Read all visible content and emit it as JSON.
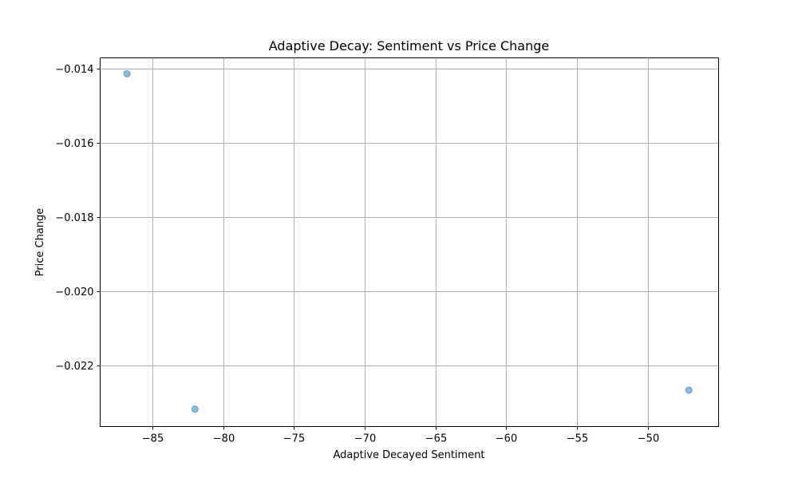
{
  "chart_data": {
    "type": "scatter",
    "title": "Adaptive Decay: Sentiment vs Price Change",
    "xlabel": "Adaptive Decayed Sentiment",
    "ylabel": "Price Change",
    "xlim": [
      -88.7,
      -45.0
    ],
    "ylim": [
      -0.02365,
      -0.01371
    ],
    "x_ticks": [
      -85,
      -80,
      -75,
      -70,
      -65,
      -60,
      -55,
      -50
    ],
    "x_tick_labels": [
      "−85",
      "−80",
      "−75",
      "−70",
      "−65",
      "−60",
      "−55",
      "−50"
    ],
    "y_ticks": [
      -0.022,
      -0.02,
      -0.018,
      -0.016,
      -0.014
    ],
    "y_tick_labels": [
      "−0.022",
      "−0.020",
      "−0.018",
      "−0.016",
      "−0.014"
    ],
    "grid": true,
    "point_color": "#1f77b4",
    "point_alpha": 0.5,
    "series": [
      {
        "points": [
          {
            "x": -86.8,
            "y": -0.01414
          },
          {
            "x": -82.0,
            "y": -0.02318
          },
          {
            "x": -47.1,
            "y": -0.02267
          }
        ]
      }
    ]
  }
}
